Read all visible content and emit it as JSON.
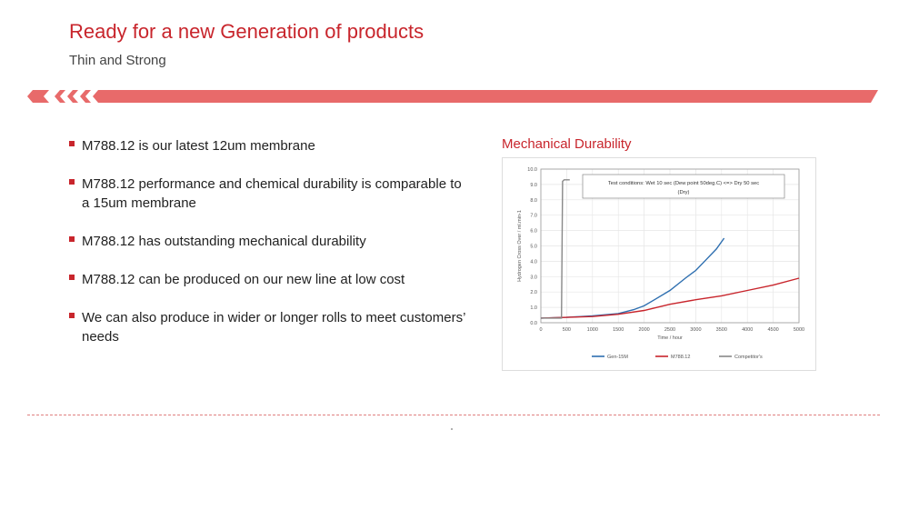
{
  "slide": {
    "title": "Ready for a new Generation of products",
    "subtitle": "Thin and Strong",
    "accent_color": "#c8252c",
    "banner_color": "#e86a6a"
  },
  "bullets": [
    "M788.12 is our latest 12um membrane",
    "M788.12 performance and chemical durability is comparable to a 15um membrane",
    "M788.12 has outstanding mechanical durability",
    "M788.12 can be produced on our new line at low cost",
    "We can also produce in wider or longer rolls to meet customers’ needs"
  ],
  "chart_title": "Mechanical Durability",
  "chart_data": {
    "type": "line",
    "ylabel": "Hydrogen Cross Over / ml.min-1",
    "xlabel": "Time / hour",
    "annotation": "Test conditions:  Wet 10 sec (Dew point 50deg.C) <=> Dry 50 sec (Dry)",
    "xlim": [
      0,
      5000
    ],
    "ylim": [
      0,
      10
    ],
    "x_ticks": [
      "0",
      "500",
      "1000",
      "1500",
      "2000",
      "2500",
      "3000",
      "3500",
      "4000",
      "4500",
      "5000"
    ],
    "y_ticks": [
      "0.0",
      "1.0",
      "2.0",
      "3.0",
      "4.0",
      "5.0",
      "6.0",
      "7.0",
      "8.0",
      "9.0",
      "10.0"
    ],
    "grid": true,
    "legend_position": "bottom",
    "series": [
      {
        "name": "Gen-15M",
        "color": "#2e6fb0",
        "x": [
          0,
          500,
          1000,
          1500,
          1800,
          2000,
          2200,
          2500,
          2800,
          3000,
          3200,
          3400,
          3550
        ],
        "y": [
          0.3,
          0.35,
          0.45,
          0.6,
          0.85,
          1.1,
          1.5,
          2.1,
          2.9,
          3.4,
          4.1,
          4.8,
          5.5
        ]
      },
      {
        "name": "M788.12",
        "color": "#c8252c",
        "x": [
          0,
          500,
          1000,
          1500,
          2000,
          2500,
          3000,
          3500,
          4000,
          4500,
          5000
        ],
        "y": [
          0.3,
          0.35,
          0.4,
          0.55,
          0.8,
          1.2,
          1.5,
          1.75,
          2.1,
          2.45,
          2.9
        ]
      },
      {
        "name": "Competitor's",
        "color": "#888888",
        "x": [
          0,
          400,
          420,
          450,
          560
        ],
        "y": [
          0.3,
          0.3,
          9.2,
          9.3,
          9.3
        ]
      }
    ]
  }
}
